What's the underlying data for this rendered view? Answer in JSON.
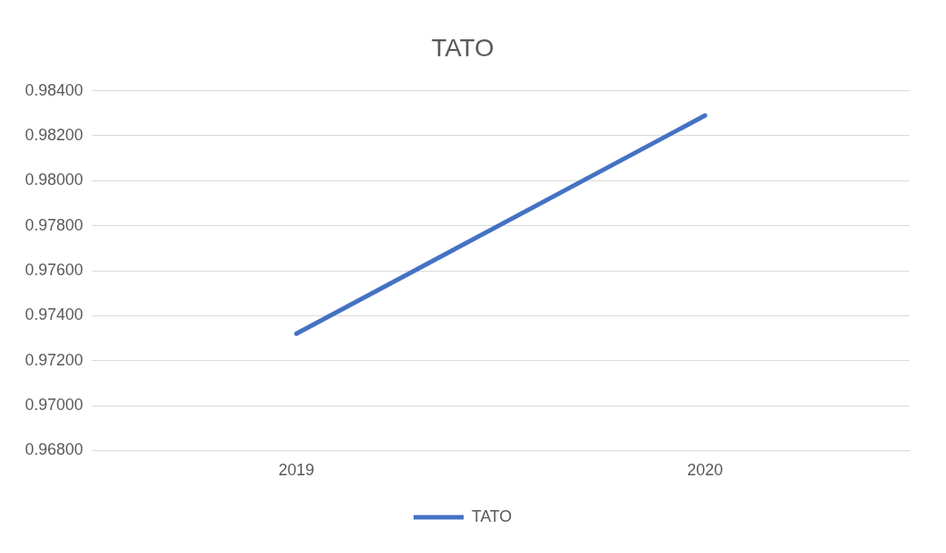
{
  "chart_data": {
    "type": "line",
    "title": "TATO",
    "categories": [
      "2019",
      "2020"
    ],
    "series": [
      {
        "name": "TATO",
        "color": "#4472c4",
        "values": [
          0.9732,
          0.9829
        ]
      }
    ],
    "ylim": [
      0.968,
      0.984
    ],
    "yticks": [
      {
        "value": 0.968,
        "label": "0.96800"
      },
      {
        "value": 0.97,
        "label": "0.97000"
      },
      {
        "value": 0.972,
        "label": "0.97200"
      },
      {
        "value": 0.974,
        "label": "0.97400"
      },
      {
        "value": 0.976,
        "label": "0.97600"
      },
      {
        "value": 0.978,
        "label": "0.97800"
      },
      {
        "value": 0.98,
        "label": "0.98000"
      },
      {
        "value": 0.982,
        "label": "0.98200"
      },
      {
        "value": 0.984,
        "label": "0.98400"
      }
    ],
    "grid": "y",
    "legend": "bottom",
    "marker": "none",
    "line_style": "solid"
  }
}
